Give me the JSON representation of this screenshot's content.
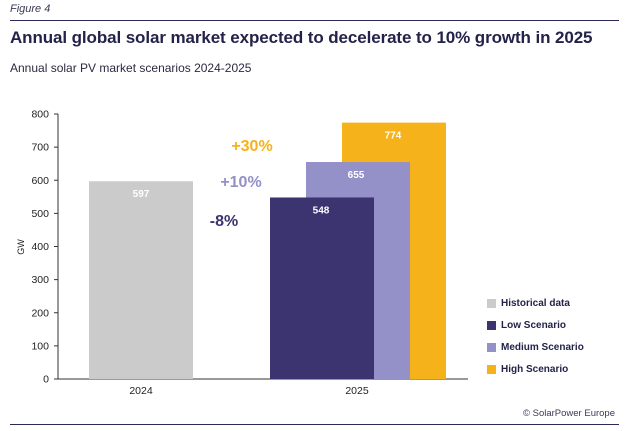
{
  "figure_label": "Figure 4",
  "title": "Annual global solar market expected to decelerate to 10% growth in 2025",
  "subtitle": "Annual solar PV market scenarios 2024-2025",
  "source": "© SolarPower Europe",
  "chart_data": {
    "type": "bar",
    "title": "Annual global solar market expected to decelerate to 10% growth in 2025",
    "subtitle": "Annual solar PV market scenarios 2024-2025",
    "ylabel": "GW",
    "xlabel": "",
    "ylim": [
      0,
      800
    ],
    "yticks": [
      0,
      100,
      200,
      300,
      400,
      500,
      600,
      700,
      800
    ],
    "grid": false,
    "legend_position": "right",
    "categories": [
      "2024",
      "2025"
    ],
    "series": [
      {
        "name": "Historical data",
        "color": "#cbcbcb",
        "category": "2024",
        "value": 597,
        "label": "597"
      },
      {
        "name": "Low Scenario",
        "color": "#3c3470",
        "category": "2025",
        "value": 548,
        "label": "548"
      },
      {
        "name": "Medium Scenario",
        "color": "#9490c8",
        "category": "2025",
        "value": 655,
        "label": "655"
      },
      {
        "name": "High Scenario",
        "color": "#f6b21b",
        "category": "2025",
        "value": 774,
        "label": "774"
      }
    ],
    "annotations": [
      {
        "text": "+30%",
        "color": "#f6b21b"
      },
      {
        "text": "+10%",
        "color": "#9490c8"
      },
      {
        "text": "-8%",
        "color": "#3c3470"
      }
    ]
  }
}
